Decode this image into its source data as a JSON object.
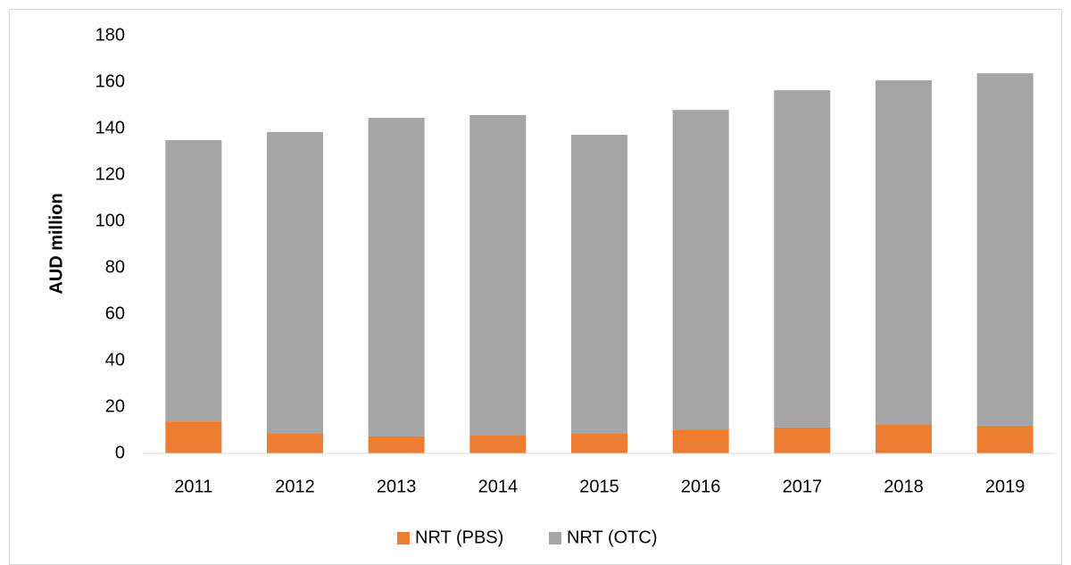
{
  "chart_data": {
    "type": "stacked_bar",
    "ylabel": "AUD million",
    "categories": [
      "2011",
      "2012",
      "2013",
      "2014",
      "2015",
      "2016",
      "2017",
      "2018",
      "2019"
    ],
    "series": [
      {
        "name": "NRT (PBS)",
        "color": "#ed7d31",
        "values": [
          13.8,
          8.8,
          7.3,
          7.7,
          8.8,
          10,
          11.2,
          12.3,
          11.9
        ]
      },
      {
        "name": "NRT (OTC)",
        "color": "#a5a5a5",
        "values": [
          121.2,
          129.7,
          137.3,
          138.1,
          128.5,
          138,
          145.3,
          148.5,
          151.9
        ]
      }
    ],
    "ylim": [
      0,
      180
    ],
    "yticks": [
      0,
      20,
      40,
      60,
      80,
      100,
      120,
      140,
      160,
      180
    ],
    "grid": false,
    "legend": "bottom"
  }
}
